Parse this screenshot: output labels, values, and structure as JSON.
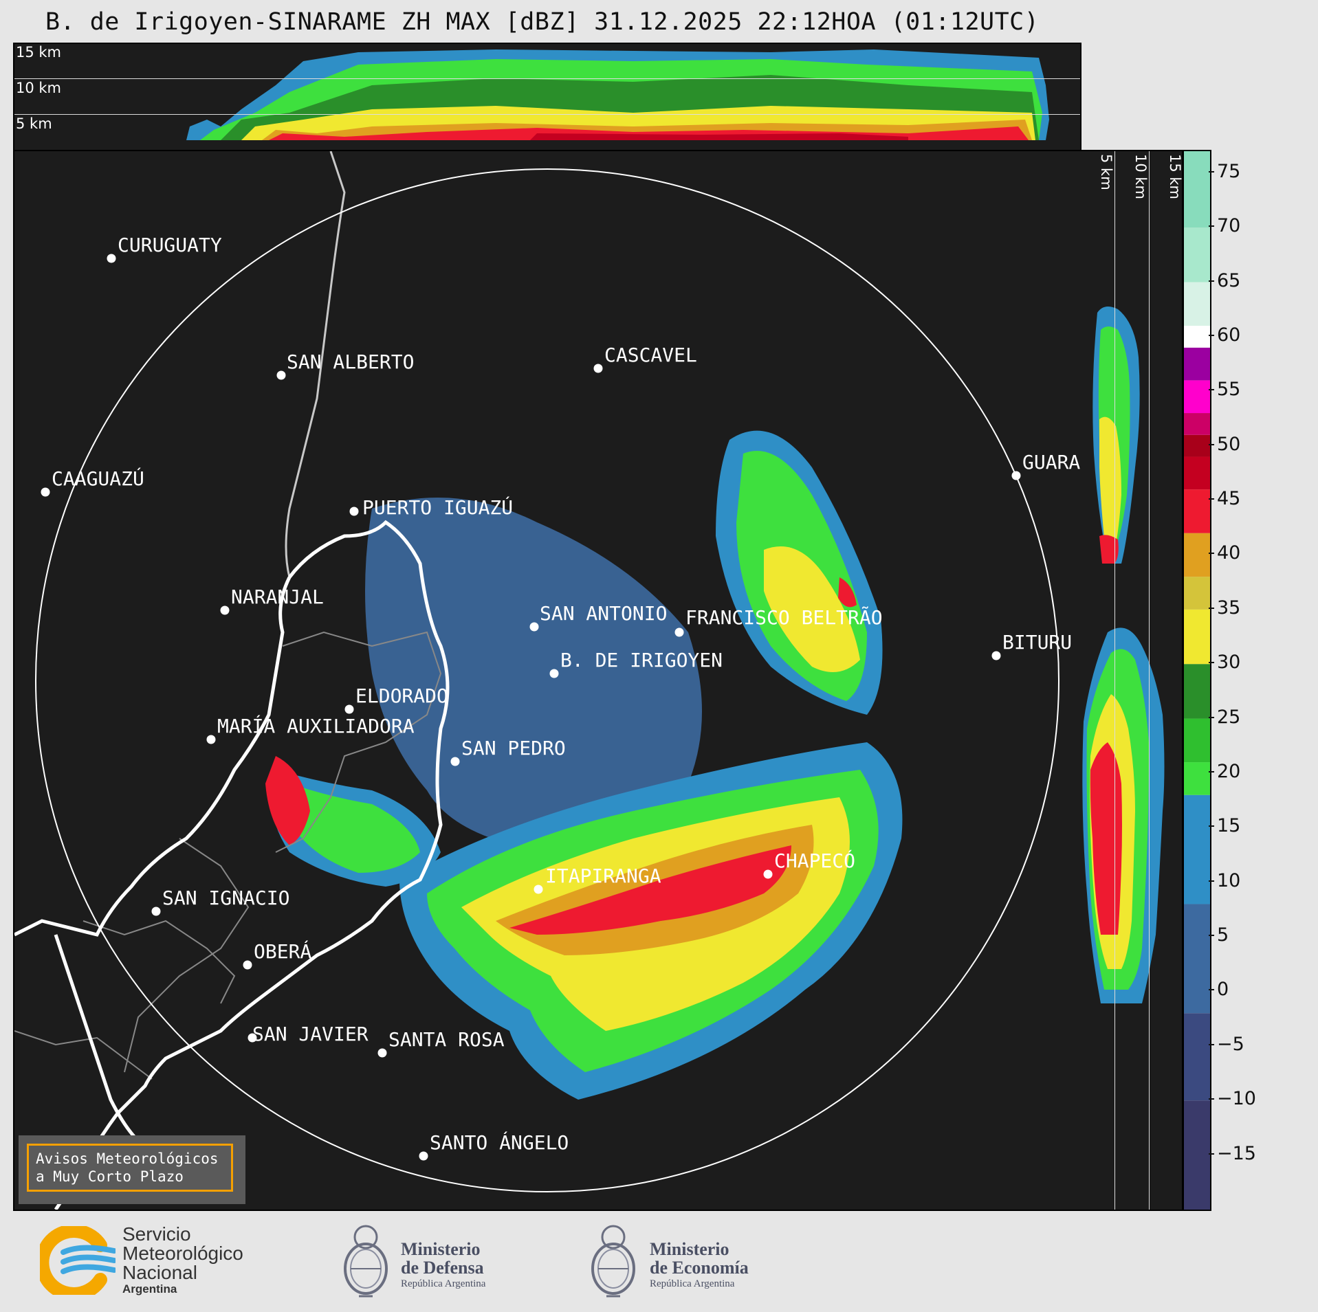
{
  "title": "B. de Irigoyen-SINARAME ZH MAX [dBZ] 31.12.2025 22:12HOA (01:12UTC)",
  "top_panel": {
    "alt_labels": [
      "15 km",
      "10 km",
      "5 km"
    ]
  },
  "side_panel": {
    "alt_labels": [
      "5 km",
      "10 km",
      "15 km"
    ]
  },
  "cities": [
    {
      "name": "CURUGUATY"
    },
    {
      "name": "SAN ALBERTO"
    },
    {
      "name": "CASCAVEL"
    },
    {
      "name": "CAAGUAZÚ"
    },
    {
      "name": "GUARA"
    },
    {
      "name": "PUERTO IGUAZÚ"
    },
    {
      "name": "NARANJAL"
    },
    {
      "name": "SAN ANTONIO"
    },
    {
      "name": "FRANCISCO BELTRÃO"
    },
    {
      "name": "B. DE IRIGOYEN"
    },
    {
      "name": "BITURU"
    },
    {
      "name": "ELDORADO"
    },
    {
      "name": "MARÍA AUXILIADORA"
    },
    {
      "name": "SAN PEDRO"
    },
    {
      "name": "ITAPIRANGA"
    },
    {
      "name": "CHAPECÓ"
    },
    {
      "name": "SAN IGNACIO"
    },
    {
      "name": "OBERÁ"
    },
    {
      "name": "SAN JAVIER"
    },
    {
      "name": "SANTA ROSA"
    },
    {
      "name": "SANTO ÁNGELO"
    }
  ],
  "colorbar": {
    "unit": "dBZ",
    "ticks": [
      "75",
      "70",
      "65",
      "60",
      "55",
      "50",
      "45",
      "40",
      "35",
      "30",
      "25",
      "20",
      "15",
      "10",
      "5",
      "0",
      "−5",
      "−10",
      "−15"
    ],
    "range": [
      -20,
      77
    ],
    "stops": [
      {
        "from": -20,
        "color": "#3a3a6a"
      },
      {
        "from": -10,
        "color": "#3b4a80"
      },
      {
        "from": -2,
        "color": "#3d6aa0"
      },
      {
        "from": 8,
        "color": "#2f8fc6"
      },
      {
        "from": 18,
        "color": "#3ee03e"
      },
      {
        "from": 21,
        "color": "#2fbf2f"
      },
      {
        "from": 25,
        "color": "#2a8f2a"
      },
      {
        "from": 30,
        "color": "#f0e830"
      },
      {
        "from": 35,
        "color": "#d4c43a"
      },
      {
        "from": 38,
        "color": "#e0a020"
      },
      {
        "from": 42,
        "color": "#ee1a30"
      },
      {
        "from": 46,
        "color": "#c40020"
      },
      {
        "from": 49,
        "color": "#a8001a"
      },
      {
        "from": 51,
        "color": "#cc0066"
      },
      {
        "from": 53,
        "color": "#ff00cc"
      },
      {
        "from": 56,
        "color": "#9b00a0"
      },
      {
        "from": 59,
        "color": "#ffffff"
      },
      {
        "from": 61,
        "color": "#d8f2e6"
      },
      {
        "from": 65,
        "color": "#a8e8cc"
      },
      {
        "from": 70,
        "color": "#88dcbc"
      }
    ]
  },
  "warning_box": {
    "line1": "Avisos Meteorológicos",
    "line2": "a Muy Corto Plazo"
  },
  "footer": {
    "smn": {
      "line1": "Servicio",
      "line2": "Meteorológico",
      "line3": "Nacional",
      "line4": "Argentina"
    },
    "defensa": {
      "line1": "Ministerio",
      "line2": "de Defensa",
      "sub": "República Argentina"
    },
    "economia": {
      "line1": "Ministerio",
      "line2": "de Economía",
      "sub": "República Argentina"
    }
  }
}
